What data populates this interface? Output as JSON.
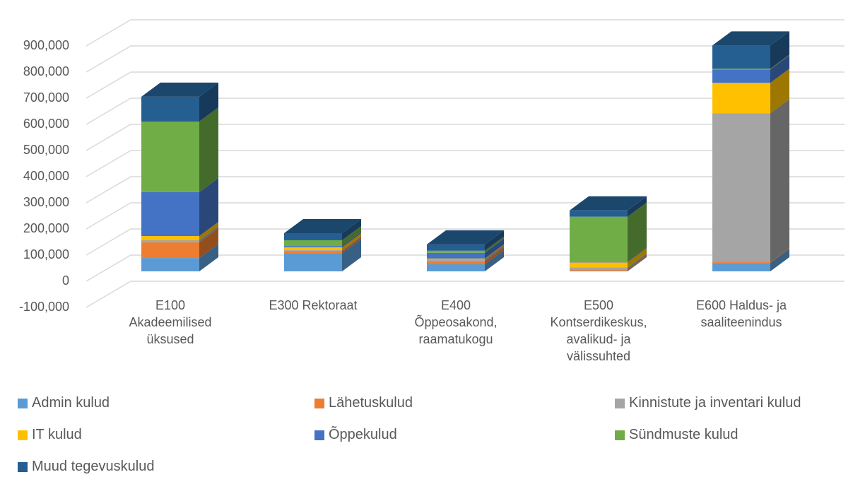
{
  "chart_data": {
    "type": "bar3d_stacked",
    "categories": [
      "E100 Akadeemilised üksused",
      "E300 Rektoraat",
      "E400 Õppeosakond, raamatukogu",
      "E500 Kontserdikeskus, avalikud- ja välissuhted",
      "E600 Haldus- ja saaliteenindus"
    ],
    "series": [
      {
        "name": "Admin kulud",
        "color": "#5b9bd5",
        "values": [
          51000,
          70000,
          27000,
          2000,
          32000
        ]
      },
      {
        "name": "Lähetuskulud",
        "color": "#ed7d31",
        "values": [
          60000,
          8000,
          11000,
          5000,
          3000
        ]
      },
      {
        "name": "Kinnistute ja inventari kulud",
        "color": "#a5a5a5",
        "values": [
          8000,
          3000,
          8000,
          8000,
          570000
        ]
      },
      {
        "name": "IT kulud",
        "color": "#ffc000",
        "values": [
          16000,
          11000,
          3000,
          19000,
          116000
        ]
      },
      {
        "name": "Õppekulud",
        "color": "#4472c4",
        "values": [
          168000,
          5000,
          22000,
          2000,
          51000
        ]
      },
      {
        "name": "Sündmuste kulud",
        "color": "#70ad47",
        "values": [
          270000,
          22000,
          8000,
          173000,
          3000
        ]
      },
      {
        "name": "Muud tegevuskulud",
        "color": "#255e91",
        "values": [
          95000,
          27000,
          24000,
          24000,
          89000
        ]
      }
    ],
    "ylim": [
      -100000,
      1000000
    ],
    "yticks": [
      {
        "value": -100000,
        "label": "-100,000"
      },
      0,
      {
        "value": 100000,
        "label": "100,000"
      },
      {
        "value": 200000,
        "label": "200,000"
      },
      {
        "value": 300000,
        "label": "300,000"
      },
      {
        "value": 400000,
        "label": "400,000"
      },
      {
        "value": 500000,
        "label": "500,000"
      },
      {
        "value": 600000,
        "label": "600,000"
      },
      {
        "value": 700000,
        "label": "700,000"
      },
      {
        "value": 800000,
        "label": "800,000"
      },
      {
        "value": 900000,
        "label": "900,000"
      }
    ],
    "grid": true,
    "legend": "bottom"
  }
}
